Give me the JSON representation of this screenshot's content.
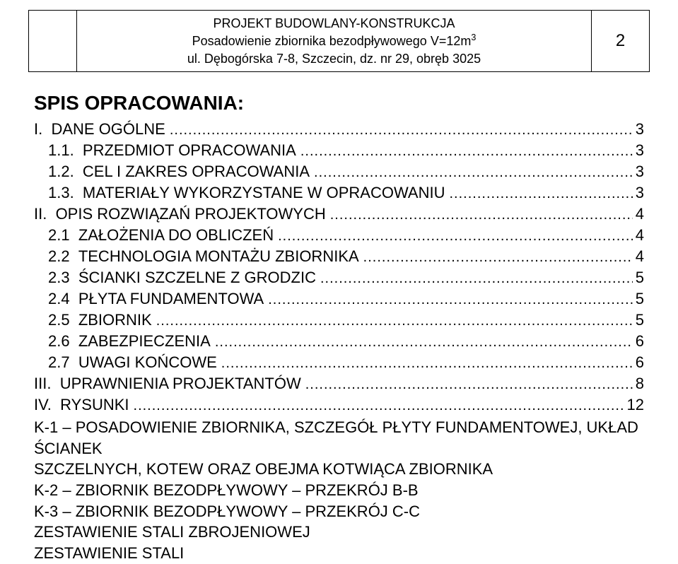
{
  "header": {
    "line1": "PROJEKT BUDOWLANY-KONSTRUKCJA",
    "line2_pre": "Posadowienie zbiornika bezodpływowego V=12m",
    "line2_sup": "3",
    "line3": "ul. Dębogórska 7-8, Szczecin, dz. nr 29, obręb 3025",
    "page_number": "2"
  },
  "title": "SPIS OPRACOWANIA:",
  "toc": [
    {
      "num": "I.",
      "label": "DANE OGÓLNE",
      "page": "3",
      "indent": 1
    },
    {
      "num": "1.1.",
      "label": "PRZEDMIOT OPRACOWANIA",
      "page": "3",
      "indent": 2
    },
    {
      "num": "1.2.",
      "label": "CEL I ZAKRES OPRACOWANIA",
      "page": "3",
      "indent": 2
    },
    {
      "num": "1.3.",
      "label": "MATERIAŁY WYKORZYSTANE W OPRACOWANIU",
      "page": "3",
      "indent": 2
    },
    {
      "num": "II.",
      "label": "OPIS ROZWIĄZAŃ PROJEKTOWYCH",
      "page": "4",
      "indent": 1
    },
    {
      "num": "2.1",
      "label": "ZAŁOŻENIA DO OBLICZEŃ",
      "page": "4",
      "indent": 2
    },
    {
      "num": "2.2",
      "label": "TECHNOLOGIA MONTAŻU ZBIORNIKA",
      "page": "4",
      "indent": 2
    },
    {
      "num": "2.3",
      "label": "ŚCIANKI SZCZELNE Z GRODZIC",
      "page": "5",
      "indent": 2
    },
    {
      "num": "2.4",
      "label": "PŁYTA FUNDAMENTOWA",
      "page": "5",
      "indent": 2
    },
    {
      "num": "2.5",
      "label": "ZBIORNIK",
      "page": "5",
      "indent": 2
    },
    {
      "num": "2.6",
      "label": "ZABEZPIECZENIA",
      "page": "6",
      "indent": 2
    },
    {
      "num": "2.7",
      "label": "UWAGI KOŃCOWE",
      "page": "6",
      "indent": 2
    },
    {
      "num": "III.",
      "label": "UPRAWNIENIA PROJEKTANTÓW",
      "page": "8",
      "indent": 1
    },
    {
      "num": "IV.",
      "label": "RYSUNKI",
      "page": "12",
      "indent": 1
    }
  ],
  "after": [
    "K-1 – POSADOWIENIE ZBIORNIKA, SZCZEGÓŁ PŁYTY FUNDAMENTOWEJ, UKŁAD ŚCIANEK",
    "SZCZELNYCH, KOTEW ORAZ OBEJMA KOTWIĄCA ZBIORNIKA",
    "K-2 – ZBIORNIK BEZODPŁYWOWY – PRZEKRÓJ  B-B",
    "K-3 – ZBIORNIK BEZODPŁYWOWY – PRZEKRÓJ  C-C",
    "ZESTAWIENIE STALI ZBROJENIOWEJ",
    "ZESTAWIENIE STALI"
  ]
}
